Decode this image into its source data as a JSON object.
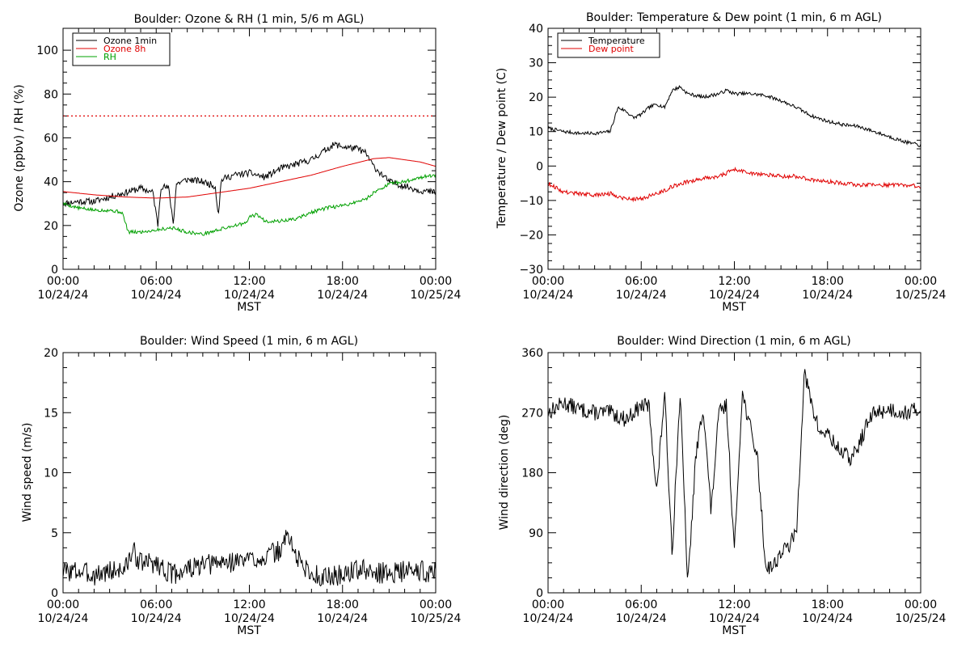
{
  "colors": {
    "black": "#000000",
    "red": "#e00000",
    "green": "#00a000"
  },
  "chart_data": [
    {
      "id": "ozone",
      "type": "line",
      "title": "Boulder: Ozone & RH (1 min, 5/6 m AGL)",
      "ylabel": "Ozone (ppbv) / RH (%)",
      "xlabel": "MST",
      "xlim": [
        0,
        24
      ],
      "ylim": [
        0,
        110
      ],
      "yticks": [
        0,
        20,
        40,
        60,
        80,
        100
      ],
      "yticks_labels": [
        "0",
        "20",
        "40",
        "60",
        "80",
        "100"
      ],
      "xticks": [
        0,
        6,
        12,
        18,
        24
      ],
      "xtick_time": [
        "00:00",
        "06:00",
        "12:00",
        "18:00",
        "00:00"
      ],
      "xtick_date": [
        "10/24/24",
        "10/24/24",
        "10/24/24",
        "10/24/24",
        "10/25/24"
      ],
      "reference_line": {
        "y": 70,
        "style": "dotted",
        "color": "#e00000"
      },
      "legend": {
        "position": "top-left"
      },
      "series": [
        {
          "name": "Ozone 1min",
          "color": "#000000",
          "noise": 1.5,
          "seed": 11,
          "x": [
            0,
            1,
            2,
            3,
            4,
            5,
            5.8,
            6.1,
            6.3,
            6.8,
            7.1,
            7.3,
            8,
            9,
            9.8,
            10,
            10.2,
            11,
            12,
            13,
            14,
            15,
            16,
            17,
            17.5,
            18,
            19,
            19.5,
            20,
            21,
            22,
            23,
            24
          ],
          "y": [
            30,
            31,
            31,
            33,
            35,
            37,
            35,
            20,
            38,
            37,
            21,
            39,
            41,
            40,
            38,
            25,
            41,
            43,
            44,
            42,
            46,
            48,
            50,
            55,
            57,
            56,
            55,
            53,
            47,
            40,
            38,
            36,
            35
          ]
        },
        {
          "name": "Ozone 8h",
          "color": "#e00000",
          "noise": 0,
          "seed": 2,
          "x": [
            0,
            2,
            4,
            6,
            8,
            10,
            12,
            14,
            16,
            18,
            20,
            21,
            22,
            23,
            24
          ],
          "y": [
            35.5,
            34,
            33,
            32.5,
            33,
            35,
            37,
            40,
            43,
            47,
            50.5,
            51,
            50,
            49,
            47
          ]
        },
        {
          "name": "RH",
          "color": "#00a000",
          "noise": 0.8,
          "seed": 5,
          "x": [
            0,
            1,
            2,
            3,
            3.8,
            4.2,
            5,
            6,
            7,
            8,
            9,
            10,
            11,
            11.8,
            12,
            12.5,
            13,
            14,
            15,
            16,
            17,
            18,
            19,
            19.5,
            20,
            21,
            22,
            23,
            24
          ],
          "y": [
            30,
            28,
            27,
            27,
            26,
            17,
            17,
            18,
            19,
            17,
            16,
            18,
            20,
            21,
            24,
            25,
            22,
            22,
            23,
            26,
            28,
            29,
            31,
            32,
            35,
            39,
            40,
            42,
            43
          ]
        }
      ]
    },
    {
      "id": "temp",
      "type": "line",
      "title": "Boulder: Temperature & Dew point (1 min, 6 m AGL)",
      "ylabel": "Temperature / Dew point (C)",
      "xlabel": "MST",
      "xlim": [
        0,
        24
      ],
      "ylim": [
        -30,
        40
      ],
      "yticks": [
        -30,
        -20,
        -10,
        0,
        10,
        20,
        30,
        40
      ],
      "yticks_labels": [
        "−30",
        "−20",
        "−10",
        "0",
        "10",
        "20",
        "30",
        "40"
      ],
      "xticks": [
        0,
        6,
        12,
        18,
        24
      ],
      "xtick_time": [
        "00:00",
        "06:00",
        "12:00",
        "18:00",
        "00:00"
      ],
      "xtick_date": [
        "10/24/24",
        "10/24/24",
        "10/24/24",
        "10/24/24",
        "10/25/24"
      ],
      "legend": {
        "position": "top-left"
      },
      "series": [
        {
          "name": "Temperature",
          "color": "#000000",
          "noise": 0.5,
          "seed": 7,
          "x": [
            0,
            1,
            2,
            3,
            4,
            4.5,
            5,
            5.5,
            6,
            6.5,
            7,
            7.5,
            8,
            8.5,
            9,
            10,
            11,
            11.5,
            12,
            13,
            14,
            15,
            16,
            17,
            18,
            19,
            20,
            21,
            22,
            23,
            24
          ],
          "y": [
            11,
            10,
            9.5,
            9.5,
            10,
            17,
            16,
            14,
            15,
            17,
            18,
            17,
            22,
            23,
            21,
            20,
            21,
            22,
            21,
            21,
            20.5,
            19,
            17,
            14.5,
            13,
            12,
            11.5,
            10,
            8.5,
            7,
            6
          ]
        },
        {
          "name": "Dew point",
          "color": "#e00000",
          "noise": 0.6,
          "seed": 9,
          "x": [
            0,
            1,
            2,
            3,
            4,
            5,
            6,
            7,
            8,
            9,
            10,
            11,
            12,
            13,
            14,
            15,
            16,
            17,
            18,
            20,
            21,
            22,
            23,
            24
          ],
          "y": [
            -5,
            -7.5,
            -8,
            -8.5,
            -8,
            -9.5,
            -9.5,
            -8,
            -6,
            -4.5,
            -3.5,
            -3,
            -1,
            -2,
            -2.5,
            -3,
            -3,
            -4,
            -4.5,
            -5.5,
            -5.5,
            -5.5,
            -5.5,
            -6
          ]
        }
      ]
    },
    {
      "id": "wspd",
      "type": "line",
      "title": "Boulder: Wind Speed (1 min, 6 m AGL)",
      "ylabel": "Wind speed (m/s)",
      "xlabel": "MST",
      "xlim": [
        0,
        24
      ],
      "ylim": [
        0,
        20
      ],
      "yticks": [
        0,
        5,
        10,
        15,
        20
      ],
      "yticks_labels": [
        "0",
        "5",
        "10",
        "15",
        "20"
      ],
      "xticks": [
        0,
        6,
        12,
        18,
        24
      ],
      "xtick_time": [
        "00:00",
        "06:00",
        "12:00",
        "18:00",
        "00:00"
      ],
      "xtick_date": [
        "10/24/24",
        "10/24/24",
        "10/24/24",
        "10/24/24",
        "10/25/24"
      ],
      "series": [
        {
          "name": "",
          "color": "#000000",
          "noise": 0.9,
          "seed": 3,
          "x": [
            0,
            1,
            2,
            3,
            4,
            4.5,
            5,
            6,
            7,
            8,
            9,
            10,
            11,
            12,
            13,
            14,
            14.5,
            15,
            16,
            17,
            18,
            19,
            20,
            21,
            22,
            23,
            24
          ],
          "y": [
            1.8,
            1.8,
            1.5,
            1.8,
            2,
            3.5,
            2.5,
            2.5,
            1.5,
            2,
            2.2,
            2.5,
            2.6,
            2.8,
            3,
            3.5,
            5,
            3,
            1.5,
            1.3,
            1.5,
            2,
            1.6,
            1.7,
            1.8,
            1.8,
            1.7
          ]
        }
      ]
    },
    {
      "id": "wdir",
      "type": "line",
      "title": "Boulder: Wind Direction (1 min, 6 m AGL)",
      "ylabel": "Wind direction (deg)",
      "xlabel": "MST",
      "xlim": [
        0,
        24
      ],
      "ylim": [
        0,
        360
      ],
      "yticks": [
        0,
        90,
        180,
        270,
        360
      ],
      "yticks_labels": [
        "0",
        "90",
        "180",
        "270",
        "360"
      ],
      "xticks": [
        0,
        6,
        12,
        18,
        24
      ],
      "xtick_time": [
        "00:00",
        "06:00",
        "12:00",
        "18:00",
        "00:00"
      ],
      "xtick_date": [
        "10/24/24",
        "10/24/24",
        "10/24/24",
        "10/24/24",
        "10/25/24"
      ],
      "series": [
        {
          "name": "",
          "color": "#000000",
          "noise": 12,
          "seed": 13,
          "x": [
            0,
            1,
            2,
            3,
            4,
            5,
            6,
            6.5,
            7,
            7.5,
            8,
            8.5,
            9,
            9.5,
            10,
            10.5,
            11,
            11.5,
            12,
            12.5,
            13,
            13.5,
            14,
            14.5,
            15,
            15.5,
            16,
            16.5,
            17,
            17.5,
            18,
            18.5,
            19,
            19.5,
            20,
            20.5,
            21,
            22,
            23,
            24
          ],
          "y": [
            270,
            285,
            275,
            270,
            270,
            260,
            280,
            280,
            150,
            300,
            60,
            300,
            10,
            200,
            280,
            120,
            270,
            280,
            60,
            300,
            250,
            200,
            40,
            40,
            60,
            70,
            90,
            330,
            280,
            240,
            240,
            220,
            210,
            200,
            220,
            250,
            270,
            275,
            270,
            275
          ]
        }
      ]
    }
  ]
}
